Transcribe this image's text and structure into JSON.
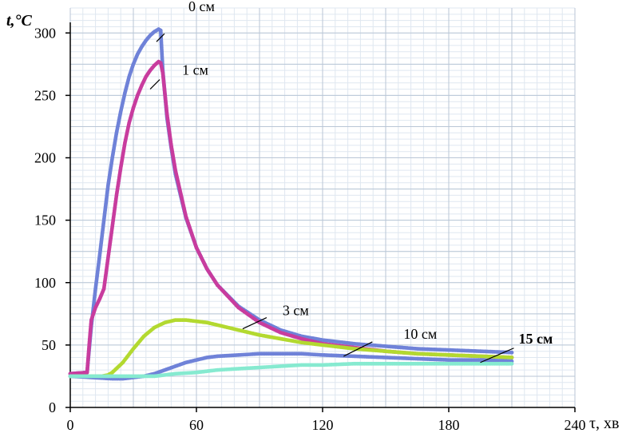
{
  "chart_data": {
    "type": "scatter",
    "ylabel": "t,°C",
    "xlabel": "τ, хв",
    "xlim": [
      0,
      240
    ],
    "ylim": [
      0,
      320
    ],
    "x_ticks": [
      0,
      60,
      120,
      180,
      240
    ],
    "y_ticks": [
      0,
      50,
      100,
      150,
      200,
      250,
      300
    ],
    "grid": true,
    "series": [
      {
        "name": "0 см",
        "color": "#6f82d8",
        "x": [
          0,
          8,
          10,
          12,
          14,
          16,
          18,
          20,
          22,
          24,
          26,
          28,
          30,
          32,
          34,
          36,
          38,
          40,
          42,
          43,
          44,
          46,
          48,
          50,
          55,
          60,
          65,
          70,
          80,
          90,
          100,
          110,
          120,
          135,
          150,
          165,
          180,
          195,
          210
        ],
        "y": [
          27,
          28,
          65,
          95,
          122,
          150,
          178,
          200,
          220,
          237,
          252,
          265,
          275,
          283,
          289,
          294,
          298,
          301,
          303,
          302,
          270,
          232,
          208,
          187,
          152,
          128,
          111,
          98,
          81,
          70,
          62,
          57,
          54,
          51,
          49,
          47,
          46,
          45,
          44
        ]
      },
      {
        "name": "1 см",
        "color": "#c83c9e",
        "x": [
          0,
          8,
          9,
          10,
          12,
          14,
          16,
          18,
          20,
          22,
          24,
          26,
          28,
          30,
          32,
          34,
          36,
          38,
          40,
          42,
          43,
          44,
          46,
          48,
          50,
          55,
          60,
          65,
          70,
          80,
          90,
          100,
          110,
          120,
          135,
          150,
          165,
          180,
          195,
          210
        ],
        "y": [
          27,
          28,
          50,
          70,
          80,
          87,
          95,
          120,
          145,
          170,
          192,
          212,
          228,
          240,
          250,
          258,
          265,
          270,
          274,
          277,
          276,
          268,
          235,
          210,
          190,
          153,
          128,
          111,
          98,
          80,
          68,
          60,
          55,
          51,
          48,
          45,
          43,
          42,
          41,
          40
        ]
      },
      {
        "name": "3 см",
        "color": "#b3d930",
        "x": [
          0,
          10,
          15,
          18,
          20,
          25,
          30,
          35,
          40,
          45,
          50,
          55,
          60,
          65,
          70,
          80,
          90,
          100,
          110,
          120,
          135,
          150,
          165,
          180,
          195,
          210
        ],
        "y": [
          25,
          25,
          25,
          26,
          28,
          36,
          47,
          57,
          64,
          68,
          70,
          70,
          69,
          68,
          66,
          62,
          58,
          55,
          52,
          50,
          47,
          45,
          43,
          42,
          41,
          40
        ]
      },
      {
        "name": "10 см",
        "color": "#6f82d8",
        "x": [
          0,
          10,
          20,
          25,
          30,
          35,
          40,
          45,
          50,
          55,
          60,
          65,
          70,
          80,
          90,
          100,
          110,
          120,
          135,
          150,
          165,
          180,
          195,
          210
        ],
        "y": [
          25,
          24,
          23,
          23,
          24,
          25,
          27,
          30,
          33,
          36,
          38,
          40,
          41,
          42,
          43,
          43,
          43,
          42,
          41,
          40,
          39,
          38,
          38,
          37
        ]
      },
      {
        "name": "15 см",
        "color": "#86ead0",
        "x": [
          0,
          10,
          20,
          30,
          40,
          45,
          50,
          60,
          70,
          80,
          90,
          100,
          110,
          120,
          135,
          150,
          165,
          180,
          195,
          210
        ],
        "y": [
          25,
          25,
          25,
          25,
          25,
          26,
          27,
          28,
          30,
          31,
          32,
          33,
          34,
          34,
          35,
          35,
          35,
          35,
          35,
          35
        ]
      }
    ],
    "annotations": [
      {
        "series": "0 см",
        "text": "0 см",
        "bold": false
      },
      {
        "series": "1 см",
        "text": "1 см",
        "bold": false
      },
      {
        "series": "3 см",
        "text": "3 см",
        "bold": false
      },
      {
        "series": "10 см",
        "text": "10 см",
        "bold": false
      },
      {
        "series": "15 см",
        "text": "15 см",
        "bold": true
      }
    ]
  }
}
